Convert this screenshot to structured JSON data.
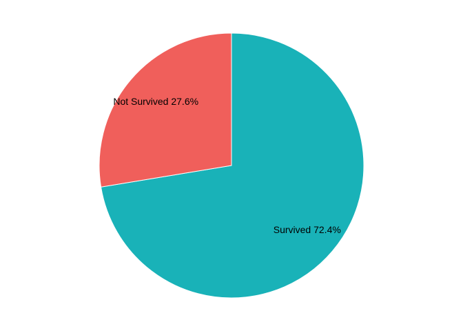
{
  "chart_data": {
    "type": "pie",
    "title": "",
    "slices": [
      {
        "label": "Survived",
        "value": 72.4,
        "display": "Survived 72.4%",
        "color": "#19b2b8"
      },
      {
        "label": "Not Survived",
        "value": 27.6,
        "display": "Not Survived 27.6%",
        "color": "#f05f5b"
      }
    ],
    "start_angle_deg": 0,
    "direction": "clockwise",
    "legend": "none"
  }
}
